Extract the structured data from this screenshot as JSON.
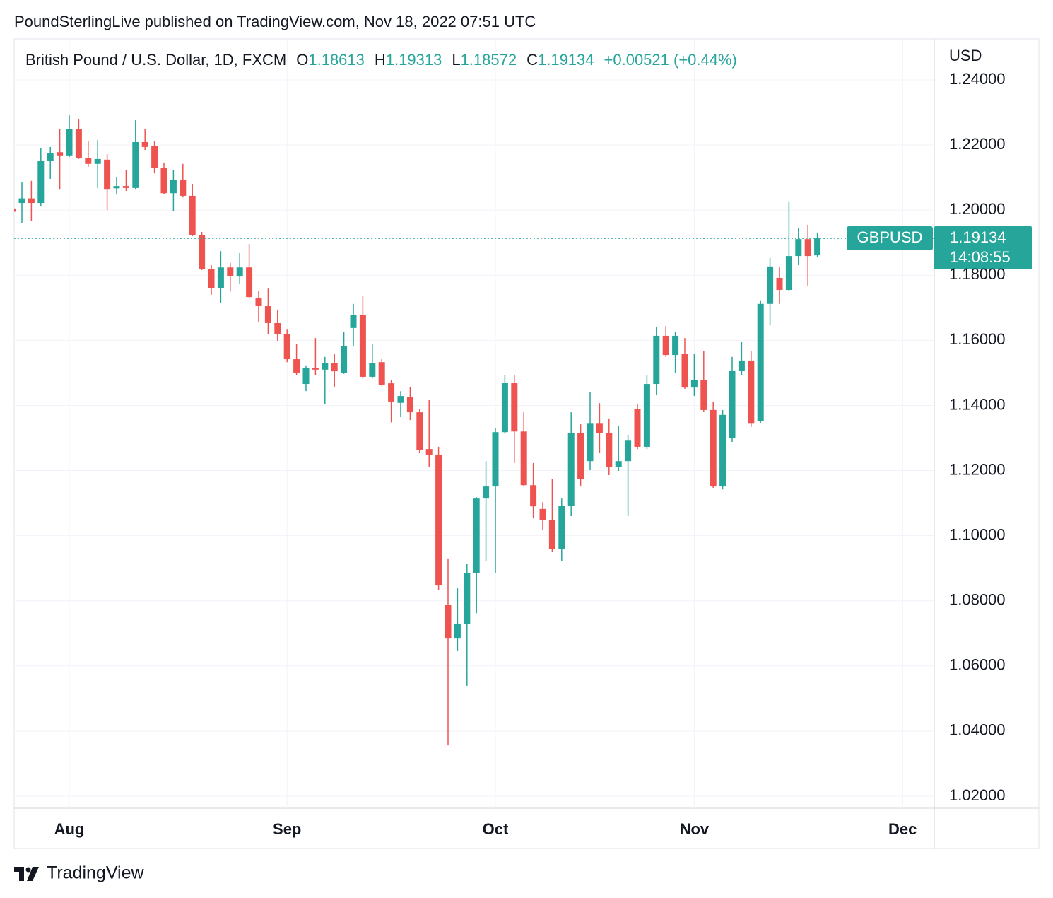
{
  "attribution": "PoundSterlingLive published on TradingView.com, Nov 18, 2022 07:51 UTC",
  "brand": "TradingView",
  "chart_data": {
    "type": "candlestick",
    "title": "British Pound / U.S. Dollar, 1D, FXCM",
    "header_labels": [
      "O",
      "H",
      "L",
      "C"
    ],
    "change_label": "+0.00521 (+0.44%)",
    "symbol": "GBPUSD",
    "countdown": "14:08:55",
    "currency": "USD",
    "up_color": "#26a69a",
    "down_color": "#ef5350",
    "grid": true,
    "categories": [
      null,
      null,
      null,
      null,
      null,
      null,
      "Aug",
      null,
      null,
      null,
      null,
      null,
      null,
      null,
      null,
      null,
      null,
      null,
      null,
      null,
      null,
      null,
      null,
      null,
      null,
      null,
      null,
      null,
      null,
      "Sep",
      null,
      null,
      null,
      null,
      null,
      null,
      null,
      null,
      null,
      null,
      null,
      null,
      null,
      null,
      null,
      null,
      null,
      null,
      null,
      null,
      null,
      "Oct",
      null,
      null,
      null,
      null,
      null,
      null,
      null,
      null,
      null,
      null,
      null,
      null,
      null,
      null,
      null,
      null,
      null,
      null,
      null,
      null,
      "Nov",
      null,
      null,
      null,
      null,
      null,
      null,
      null,
      null,
      null,
      null,
      null,
      null,
      null,
      null,
      null,
      null,
      null,
      null,
      null,
      null,
      null,
      "Dec",
      null,
      null,
      null
    ],
    "open": [
      1.2005,
      1.2022,
      1.2036,
      1.2022,
      1.2152,
      1.2178,
      1.2168,
      1.2248,
      1.2161,
      1.2142,
      1.2155,
      1.2067,
      1.2074,
      1.2068,
      1.2209,
      1.2196,
      1.2129,
      1.2052,
      1.2092,
      1.2044,
      1.1924,
      1.182,
      1.1761,
      1.1824,
      1.1796,
      1.1824,
      1.1729,
      1.1705,
      1.1653,
      1.162,
      1.1542,
      1.1466,
      1.1516,
      1.151,
      1.1531,
      1.1501,
      1.1638,
      1.1679,
      1.1488,
      1.1533,
      1.1468,
      1.1408,
      1.1425,
      1.1379,
      1.1266,
      1.1249,
      1.0788,
      1.0684,
      1.0728,
      1.0886,
      1.1114,
      1.1151,
      1.1318,
      1.147,
      1.132,
      1.1155,
      1.1082,
      1.1049,
      1.0958,
      1.1092,
      1.1316,
      1.1229,
      1.1346,
      1.1316,
      1.1212,
      1.1229,
      1.139,
      1.1273,
      1.1466,
      1.1614,
      1.1555,
      1.1559,
      1.1455,
      1.1477,
      1.1386,
      1.1151,
      1.1299,
      1.1507,
      1.1538,
      1.1351,
      1.1712,
      1.1792,
      1.1755,
      1.1859,
      1.1911,
      1.18613,
      null,
      null,
      null,
      null,
      null,
      null,
      null,
      null,
      null,
      null,
      null,
      null
    ],
    "high": [
      1.2015,
      1.2085,
      1.209,
      1.219,
      1.2194,
      1.2248,
      1.2291,
      1.228,
      1.2211,
      1.2215,
      1.2172,
      1.2102,
      1.2124,
      1.2276,
      1.2248,
      1.2211,
      1.2146,
      1.2124,
      1.2142,
      1.2081,
      1.1933,
      1.1831,
      1.1874,
      1.1838,
      1.1868,
      1.1896,
      1.1751,
      1.1759,
      1.1694,
      1.1635,
      1.1588,
      1.1523,
      1.1607,
      1.1549,
      1.1559,
      1.1625,
      1.1712,
      1.1738,
      1.1588,
      1.1542,
      1.1477,
      1.1444,
      1.1457,
      1.139,
      1.1418,
      1.1273,
      1.093,
      1.0838,
      1.0914,
      1.1118,
      1.1229,
      1.1331,
      1.1494,
      1.1494,
      1.1379,
      1.1223,
      1.1103,
      1.1173,
      1.1114,
      1.1379,
      1.1342,
      1.144,
      1.1407,
      1.136,
      1.1336,
      1.131,
      1.1403,
      1.1494,
      1.164,
      1.1644,
      1.1625,
      1.1607,
      1.1559,
      1.1566,
      1.1412,
      1.1386,
      1.1549,
      1.1596,
      1.1568,
      1.1723,
      1.1853,
      1.1824,
      1.2027,
      1.1944,
      1.1955,
      1.19313,
      null,
      null,
      null,
      null,
      null,
      null,
      null,
      null,
      null,
      null,
      null,
      null
    ],
    "low": [
      1.1985,
      1.196,
      1.1966,
      1.2011,
      1.2096,
      1.2063,
      1.2163,
      1.2157,
      1.2133,
      1.2068,
      1.2,
      1.2048,
      1.2059,
      1.2063,
      1.2185,
      1.2113,
      1.2048,
      1.1998,
      1.2039,
      1.192,
      1.1816,
      1.174,
      1.1716,
      1.175,
      1.1773,
      1.1729,
      1.1657,
      1.162,
      1.1599,
      1.1533,
      1.1494,
      1.1444,
      1.1494,
      1.1405,
      1.1457,
      1.1497,
      1.1581,
      1.1483,
      1.1483,
      1.146,
      1.1348,
      1.1364,
      1.1355,
      1.1255,
      1.1212,
      1.0832,
      1.0356,
      1.0647,
      1.0539,
      1.0762,
      1.0923,
      1.0886,
      1.1313,
      1.1223,
      1.1151,
      1.1053,
      1.1017,
      1.0951,
      1.0923,
      1.106,
      1.1151,
      1.1201,
      1.1255,
      1.1186,
      1.1199,
      1.106,
      1.1266,
      1.1266,
      1.1433,
      1.1549,
      1.1499,
      1.1451,
      1.1429,
      1.1381,
      1.1147,
      1.1142,
      1.1288,
      1.1494,
      1.1334,
      1.1347,
      1.1646,
      1.1712,
      1.1751,
      1.1831,
      1.1766,
      1.18572,
      null,
      null,
      null,
      null,
      null,
      null,
      null,
      null,
      null,
      null,
      null,
      null
    ],
    "close": [
      1.1995,
      1.2036,
      1.2022,
      1.2152,
      1.2176,
      1.2168,
      1.2248,
      1.2161,
      1.2142,
      1.2157,
      1.2063,
      1.2074,
      1.2068,
      1.2209,
      1.2194,
      1.2129,
      1.2052,
      1.2092,
      1.2044,
      1.1924,
      1.182,
      1.1761,
      1.1824,
      1.1798,
      1.1824,
      1.1733,
      1.1705,
      1.1653,
      1.162,
      1.1542,
      1.1501,
      1.1516,
      1.151,
      1.1531,
      1.1505,
      1.1583,
      1.1679,
      1.1488,
      1.1531,
      1.1464,
      1.1412,
      1.1429,
      1.1379,
      1.1262,
      1.1249,
      1.0847,
      1.0684,
      1.073,
      1.0886,
      1.1114,
      1.1151,
      1.1318,
      1.147,
      1.132,
      1.1155,
      1.109,
      1.1049,
      1.0958,
      1.1092,
      1.1316,
      1.1173,
      1.1346,
      1.1316,
      1.1212,
      1.1229,
      1.1294,
      1.1273,
      1.1466,
      1.1614,
      1.1555,
      1.1614,
      1.1455,
      1.1477,
      1.1386,
      1.1151,
      1.1371,
      1.1507,
      1.1538,
      1.1346,
      1.1712,
      1.1827,
      1.1755,
      1.1859,
      1.1911,
      1.1859,
      1.19134,
      null,
      null,
      null,
      null,
      null,
      null,
      null,
      null,
      null,
      null,
      null,
      null
    ],
    "ylim": [
      1.0163,
      1.2526
    ],
    "yticks": [
      {
        "value": 1.02,
        "label": "1.02000"
      },
      {
        "value": 1.04,
        "label": "1.04000"
      },
      {
        "value": 1.06,
        "label": "1.06000"
      },
      {
        "value": 1.08,
        "label": "1.08000"
      },
      {
        "value": 1.1,
        "label": "1.10000"
      },
      {
        "value": 1.12,
        "label": "1.12000"
      },
      {
        "value": 1.14,
        "label": "1.14000"
      },
      {
        "value": 1.16,
        "label": "1.16000"
      },
      {
        "value": 1.18,
        "label": "1.18000"
      },
      {
        "value": 1.2,
        "label": "1.20000"
      },
      {
        "value": 1.22,
        "label": "1.22000"
      },
      {
        "value": 1.24,
        "label": "1.24000"
      }
    ]
  }
}
